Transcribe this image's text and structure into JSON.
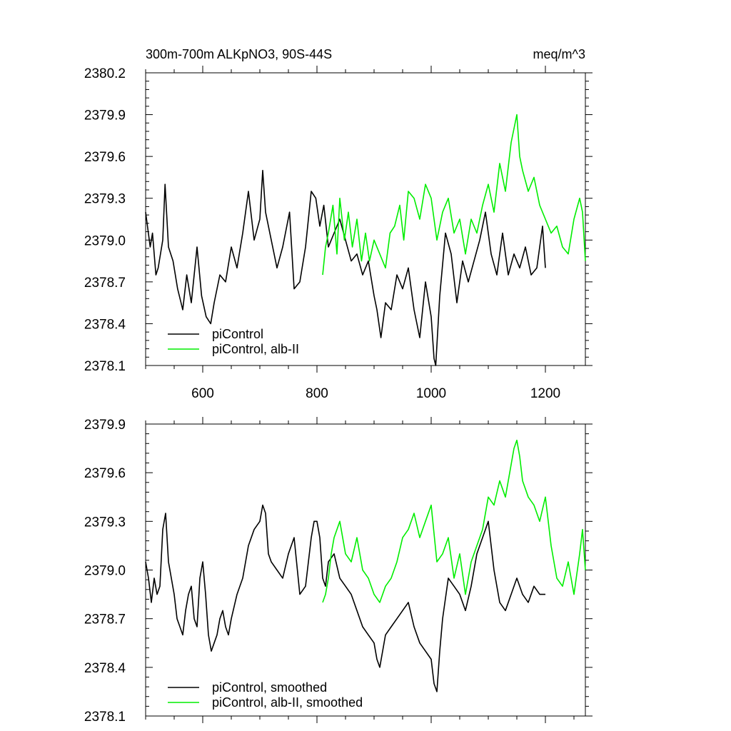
{
  "figure": {
    "title_left": "300m-700m ALKpNO3, 90S-44S",
    "title_right": "meq/m^3"
  },
  "colors": {
    "control": "#000000",
    "alb": "#00ee00"
  },
  "chart_data": [
    {
      "type": "line",
      "xlim": [
        500,
        1270
      ],
      "ylim": [
        2378.1,
        2380.2
      ],
      "x_ticks": [
        600,
        800,
        1000,
        1200
      ],
      "x_tick_labels": [
        "600",
        "800",
        "1000",
        "1200"
      ],
      "y_ticks": [
        2378.1,
        2378.4,
        2378.7,
        2379.0,
        2379.3,
        2379.6,
        2379.9,
        2380.2
      ],
      "y_tick_labels": [
        "2378.1",
        "2378.4",
        "2378.7",
        "2379.0",
        "2379.3",
        "2379.6",
        "2379.9",
        "2380.2"
      ],
      "legend": "bottom-left",
      "series": [
        {
          "name": "piControl",
          "color": "#000000",
          "x": [
            500,
            508,
            512,
            518,
            522,
            530,
            534,
            540,
            548,
            556,
            565,
            572,
            580,
            590,
            598,
            606,
            614,
            620,
            630,
            640,
            650,
            660,
            670,
            680,
            690,
            700,
            705,
            710,
            720,
            730,
            740,
            752,
            760,
            770,
            780,
            790,
            798,
            805,
            812,
            820,
            830,
            840,
            850,
            860,
            870,
            880,
            890,
            900,
            905,
            912,
            920,
            930,
            940,
            950,
            960,
            970,
            980,
            990,
            1000,
            1005,
            1008,
            1015,
            1025,
            1035,
            1045,
            1055,
            1065,
            1075,
            1085,
            1095,
            1105,
            1115,
            1125,
            1135,
            1145,
            1155,
            1165,
            1175,
            1185,
            1195,
            1200
          ],
          "values": [
            2379.2,
            2378.95,
            2379.05,
            2378.75,
            2378.8,
            2379.0,
            2379.4,
            2378.95,
            2378.85,
            2378.65,
            2378.5,
            2378.75,
            2378.55,
            2378.95,
            2378.6,
            2378.45,
            2378.4,
            2378.55,
            2378.75,
            2378.7,
            2378.95,
            2378.8,
            2379.05,
            2379.35,
            2379.0,
            2379.15,
            2379.5,
            2379.2,
            2379.0,
            2378.8,
            2378.95,
            2379.2,
            2378.65,
            2378.7,
            2378.95,
            2379.35,
            2379.3,
            2379.1,
            2379.25,
            2378.95,
            2379.05,
            2379.15,
            2379.0,
            2378.85,
            2378.9,
            2378.75,
            2378.85,
            2378.6,
            2378.5,
            2378.3,
            2378.55,
            2378.5,
            2378.75,
            2378.65,
            2378.8,
            2378.5,
            2378.3,
            2378.7,
            2378.45,
            2378.15,
            2378.1,
            2378.6,
            2379.05,
            2378.9,
            2378.55,
            2378.85,
            2378.7,
            2378.85,
            2379.0,
            2379.2,
            2378.9,
            2378.75,
            2379.05,
            2378.75,
            2378.9,
            2378.8,
            2378.95,
            2378.75,
            2378.8,
            2379.1,
            2378.8
          ]
        },
        {
          "name": "piControl, alb-II",
          "color": "#00ee00",
          "x": [
            810,
            815,
            820,
            828,
            835,
            840,
            848,
            855,
            862,
            870,
            878,
            885,
            892,
            900,
            910,
            920,
            928,
            936,
            945,
            952,
            960,
            970,
            980,
            990,
            1000,
            1010,
            1020,
            1030,
            1040,
            1050,
            1060,
            1070,
            1080,
            1090,
            1100,
            1110,
            1120,
            1130,
            1140,
            1145,
            1150,
            1155,
            1160,
            1170,
            1180,
            1190,
            1200,
            1210,
            1220,
            1230,
            1240,
            1250,
            1260,
            1265,
            1270
          ],
          "values": [
            2378.75,
            2378.95,
            2379.05,
            2379.25,
            2378.9,
            2379.3,
            2379.0,
            2379.2,
            2378.95,
            2379.15,
            2378.85,
            2379.05,
            2378.85,
            2379.0,
            2378.9,
            2378.8,
            2379.05,
            2379.1,
            2379.25,
            2379.0,
            2379.35,
            2379.3,
            2379.15,
            2379.4,
            2379.3,
            2379.0,
            2379.2,
            2379.3,
            2379.05,
            2379.15,
            2378.9,
            2379.15,
            2379.05,
            2379.25,
            2379.4,
            2379.2,
            2379.55,
            2379.35,
            2379.7,
            2379.8,
            2379.9,
            2379.6,
            2379.5,
            2379.35,
            2379.45,
            2379.25,
            2379.15,
            2379.05,
            2379.1,
            2378.95,
            2378.9,
            2379.15,
            2379.3,
            2379.2,
            2378.85
          ]
        }
      ]
    },
    {
      "type": "line",
      "xlim": [
        500,
        1270
      ],
      "ylim": [
        2378.1,
        2379.9
      ],
      "y_ticks": [
        2378.1,
        2378.4,
        2378.7,
        2379.0,
        2379.3,
        2379.6,
        2379.9
      ],
      "y_tick_labels": [
        "2378.1",
        "2378.4",
        "2378.7",
        "2379.0",
        "2379.3",
        "2379.6",
        "2379.9"
      ],
      "legend": "bottom-left",
      "series": [
        {
          "name": "piControl, smoothed",
          "color": "#000000",
          "x": [
            500,
            505,
            510,
            515,
            520,
            525,
            530,
            535,
            540,
            545,
            550,
            555,
            560,
            565,
            570,
            575,
            580,
            585,
            590,
            595,
            600,
            605,
            610,
            615,
            620,
            625,
            630,
            635,
            640,
            645,
            650,
            660,
            670,
            680,
            690,
            700,
            705,
            710,
            715,
            720,
            730,
            740,
            750,
            760,
            770,
            780,
            790,
            795,
            800,
            805,
            810,
            815,
            820,
            830,
            840,
            850,
            860,
            870,
            880,
            890,
            900,
            905,
            910,
            915,
            920,
            930,
            940,
            950,
            960,
            970,
            980,
            990,
            1000,
            1005,
            1010,
            1015,
            1020,
            1030,
            1040,
            1050,
            1060,
            1070,
            1080,
            1090,
            1100,
            1110,
            1120,
            1130,
            1140,
            1150,
            1160,
            1170,
            1180,
            1190,
            1200
          ],
          "values": [
            2379.05,
            2378.95,
            2378.8,
            2378.95,
            2378.85,
            2378.9,
            2379.25,
            2379.35,
            2379.05,
            2378.95,
            2378.85,
            2378.7,
            2378.65,
            2378.6,
            2378.75,
            2378.85,
            2378.9,
            2378.7,
            2378.65,
            2378.95,
            2379.05,
            2378.85,
            2378.6,
            2378.5,
            2378.55,
            2378.6,
            2378.7,
            2378.75,
            2378.65,
            2378.6,
            2378.7,
            2378.85,
            2378.95,
            2379.15,
            2379.25,
            2379.3,
            2379.4,
            2379.35,
            2379.1,
            2379.05,
            2379.0,
            2378.95,
            2379.1,
            2379.2,
            2378.85,
            2378.9,
            2379.2,
            2379.3,
            2379.3,
            2379.2,
            2378.95,
            2378.9,
            2379.05,
            2379.1,
            2378.95,
            2378.9,
            2378.85,
            2378.75,
            2378.65,
            2378.6,
            2378.55,
            2378.45,
            2378.4,
            2378.5,
            2378.6,
            2378.65,
            2378.7,
            2378.75,
            2378.8,
            2378.65,
            2378.55,
            2378.5,
            2378.45,
            2378.3,
            2378.25,
            2378.5,
            2378.7,
            2378.95,
            2378.9,
            2378.85,
            2378.75,
            2378.9,
            2379.1,
            2379.2,
            2379.3,
            2379.0,
            2378.8,
            2378.75,
            2378.85,
            2378.95,
            2378.85,
            2378.8,
            2378.9,
            2378.85,
            2378.85
          ]
        },
        {
          "name": "piControl, alb-II, smoothed",
          "color": "#00ee00",
          "x": [
            810,
            815,
            820,
            825,
            830,
            840,
            850,
            860,
            870,
            880,
            890,
            900,
            910,
            920,
            930,
            940,
            950,
            960,
            970,
            980,
            990,
            1000,
            1010,
            1020,
            1030,
            1040,
            1050,
            1060,
            1070,
            1080,
            1090,
            1100,
            1110,
            1120,
            1130,
            1140,
            1145,
            1150,
            1155,
            1160,
            1170,
            1180,
            1190,
            1200,
            1210,
            1220,
            1230,
            1240,
            1250,
            1260,
            1265,
            1270
          ],
          "values": [
            2378.8,
            2378.85,
            2378.95,
            2379.1,
            2379.2,
            2379.3,
            2379.1,
            2379.05,
            2379.2,
            2379.0,
            2378.95,
            2378.85,
            2378.8,
            2378.9,
            2378.95,
            2379.05,
            2379.2,
            2379.25,
            2379.35,
            2379.2,
            2379.3,
            2379.4,
            2379.05,
            2379.1,
            2379.2,
            2378.95,
            2379.1,
            2378.85,
            2379.05,
            2379.15,
            2379.25,
            2379.45,
            2379.4,
            2379.55,
            2379.45,
            2379.65,
            2379.75,
            2379.8,
            2379.7,
            2379.55,
            2379.45,
            2379.4,
            2379.3,
            2379.45,
            2379.15,
            2378.95,
            2378.9,
            2379.05,
            2378.85,
            2379.1,
            2379.25,
            2379.0
          ]
        }
      ]
    }
  ]
}
